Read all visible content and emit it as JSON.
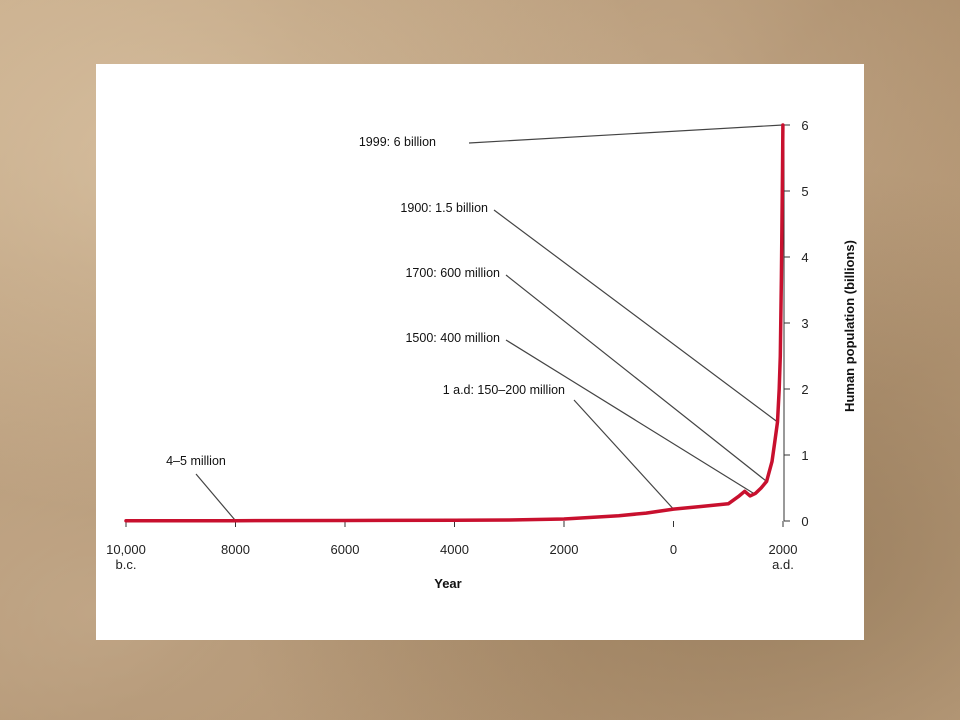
{
  "chart_data": {
    "type": "line",
    "xlabel": "Year",
    "ylabel": "Human population (billions)",
    "xlim": [
      -10000,
      2000
    ],
    "ylim": [
      0,
      6
    ],
    "x_ticks": [
      {
        "value": -10000,
        "label": "10,000",
        "sublabel": "b.c."
      },
      {
        "value": -8000,
        "label": "8000"
      },
      {
        "value": -6000,
        "label": "6000"
      },
      {
        "value": -4000,
        "label": "4000"
      },
      {
        "value": -2000,
        "label": "2000"
      },
      {
        "value": 0,
        "label": "0"
      },
      {
        "value": 2000,
        "label": "2000",
        "sublabel": "a.d."
      }
    ],
    "y_ticks": [
      0,
      1,
      2,
      3,
      4,
      5,
      6
    ],
    "grid": false,
    "series": [
      {
        "color": "#c8102e",
        "x": [
          -10000,
          -8000,
          -6000,
          -4000,
          -3000,
          -2000,
          -1000,
          -500,
          0,
          500,
          1000,
          1200,
          1300,
          1400,
          1500,
          1600,
          1700,
          1800,
          1850,
          1900,
          1930,
          1950,
          1970,
          1990,
          1999
        ],
        "y": [
          0.005,
          0.005,
          0.007,
          0.01,
          0.015,
          0.03,
          0.08,
          0.12,
          0.18,
          0.22,
          0.26,
          0.38,
          0.45,
          0.38,
          0.42,
          0.5,
          0.6,
          0.9,
          1.2,
          1.5,
          2.0,
          2.5,
          3.7,
          5.3,
          6.0
        ]
      }
    ],
    "annotations": [
      {
        "text": "1999: 6 billion",
        "x": 1999,
        "y": 6.0
      },
      {
        "text": "1900: 1.5 billion",
        "x": 1900,
        "y": 1.5
      },
      {
        "text": "1700: 600 million",
        "x": 1700,
        "y": 0.6
      },
      {
        "text": "1500: 400 million",
        "x": 1500,
        "y": 0.4
      },
      {
        "text": "1 a.d: 150–200 million",
        "x": 0,
        "y": 0.18
      },
      {
        "text": "4–5 million",
        "x": -8000,
        "y": 0.005
      }
    ]
  }
}
